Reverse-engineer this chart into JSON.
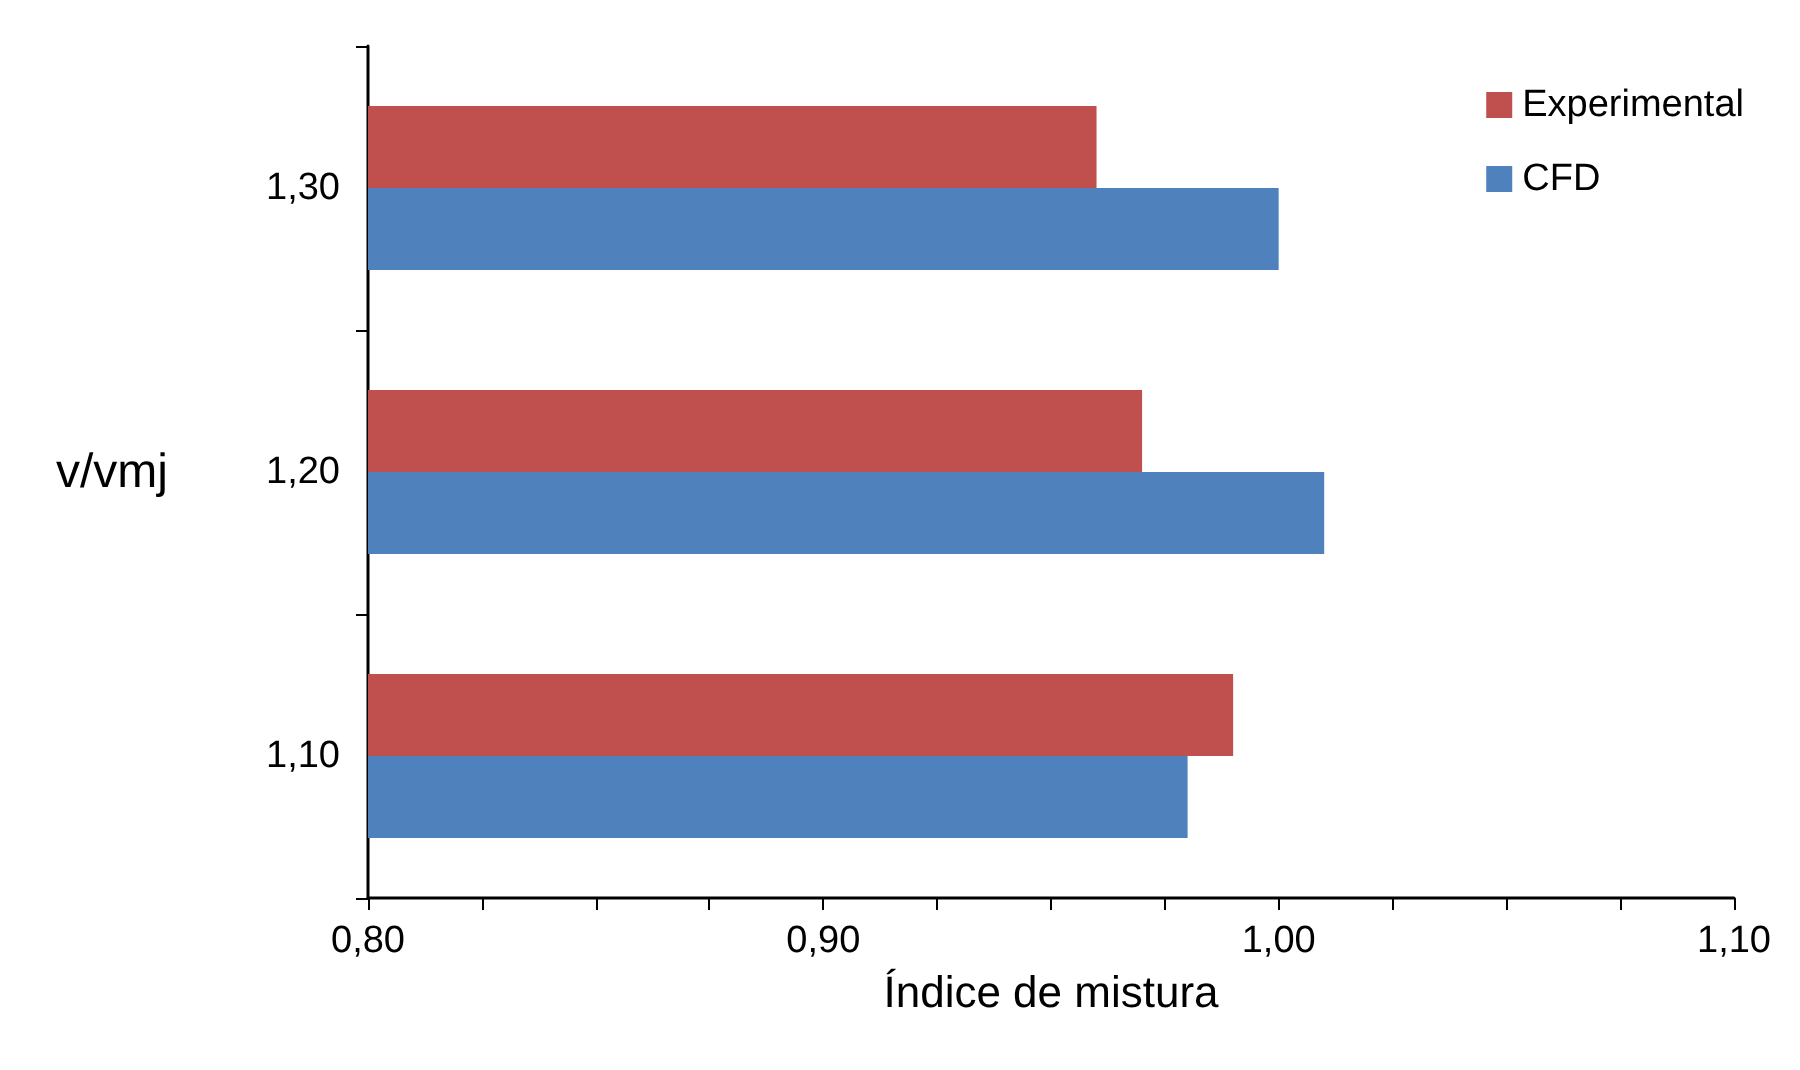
{
  "chart_data": {
    "type": "bar",
    "orientation": "horizontal",
    "xlabel": "Índice de mistura",
    "ylabel": "v/vmj",
    "categories": [
      "1,30",
      "1,20",
      "1,10"
    ],
    "series": [
      {
        "name": "Experimental",
        "color": "#c0504d",
        "values": [
          0.96,
          0.97,
          0.99
        ]
      },
      {
        "name": "CFD",
        "color": "#4f81bd",
        "values": [
          1.0,
          1.01,
          0.98
        ]
      }
    ],
    "xlim": [
      0.8,
      1.1
    ],
    "xticks": [
      {
        "value": 0.8,
        "label": "0,80"
      },
      {
        "value": 0.825,
        "label": null
      },
      {
        "value": 0.85,
        "label": null
      },
      {
        "value": 0.875,
        "label": null
      },
      {
        "value": 0.9,
        "label": "0,90"
      },
      {
        "value": 0.925,
        "label": null
      },
      {
        "value": 0.95,
        "label": null
      },
      {
        "value": 0.975,
        "label": null
      },
      {
        "value": 1.0,
        "label": "1,00"
      },
      {
        "value": 1.025,
        "label": null
      },
      {
        "value": 1.05,
        "label": null
      },
      {
        "value": 1.075,
        "label": null
      },
      {
        "value": 1.1,
        "label": "1,10"
      }
    ],
    "grid": false,
    "legend": "top right"
  }
}
